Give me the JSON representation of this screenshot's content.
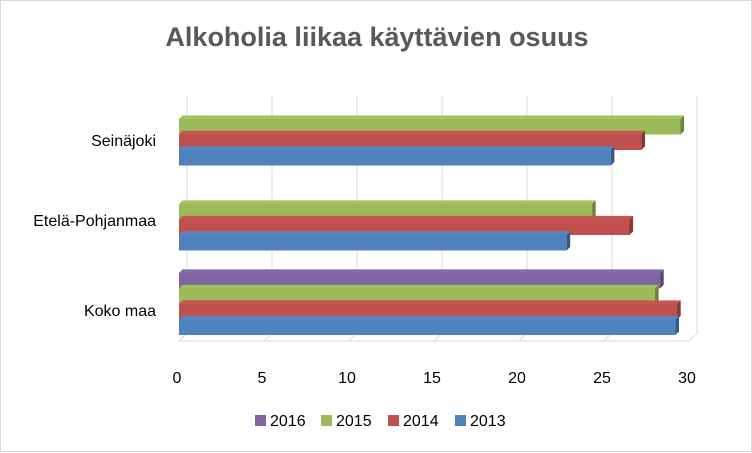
{
  "chart_data": {
    "type": "bar",
    "orientation": "horizontal",
    "three_d": true,
    "title": "Alkoholia liikaa käyttävien osuus",
    "categories": [
      "Seinäjoki",
      "Etelä-Pohjanmaa",
      "Koko maa"
    ],
    "series": [
      {
        "name": "2013",
        "color": "#4f81bd",
        "values": [
          25.4,
          22.8,
          29.2
        ]
      },
      {
        "name": "2014",
        "color": "#c0504d",
        "values": [
          27.2,
          26.5,
          29.3
        ]
      },
      {
        "name": "2015",
        "color": "#9bbb59",
        "values": [
          29.5,
          24.3,
          28.0
        ]
      },
      {
        "name": "2016",
        "color": "#8064a2",
        "values": [
          null,
          null,
          28.3
        ]
      }
    ],
    "xlim": [
      0,
      30
    ],
    "xticks": [
      "0",
      "5",
      "10",
      "15",
      "20",
      "25",
      "30"
    ],
    "grid": true,
    "legend_position": "bottom"
  }
}
